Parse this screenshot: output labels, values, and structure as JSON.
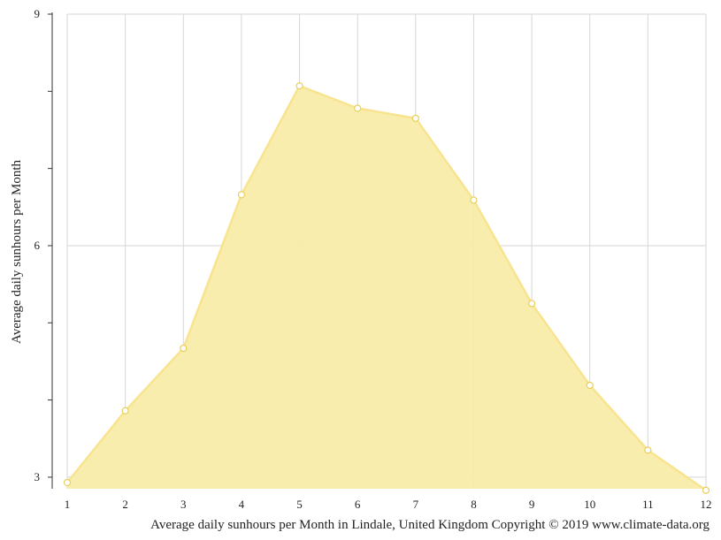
{
  "chart_data": {
    "type": "area",
    "title": "",
    "xlabel": "",
    "ylabel": "Average daily sunhours per Month",
    "caption": "Average daily sunhours per Month in Lindale, United Kingdom Copyright © 2019 www.climate-data.org",
    "x": [
      1,
      2,
      3,
      4,
      5,
      6,
      7,
      8,
      9,
      10,
      11,
      12
    ],
    "x_tick_labels": [
      "1",
      "2",
      "3",
      "4",
      "5",
      "6",
      "7",
      "8",
      "9",
      "10",
      "11",
      "12"
    ],
    "y_tick_labels": [
      "3",
      "6",
      "9"
    ],
    "y_ticks": [
      3,
      6,
      9
    ],
    "ylim": [
      2.85,
      9
    ],
    "xlim": [
      1,
      12
    ],
    "grid": true,
    "series": [
      {
        "values": [
          2.93,
          3.86,
          4.67,
          6.66,
          8.07,
          7.78,
          7.65,
          6.59,
          5.25,
          4.19,
          3.35,
          2.83
        ]
      }
    ],
    "colors": {
      "fill": "#f9ecaa",
      "line": "#f8e38e",
      "marker_fill": "#ffffff",
      "marker_stroke": "#e8cf5a",
      "grid": "#d6d6d6",
      "axis": "#333333"
    }
  }
}
